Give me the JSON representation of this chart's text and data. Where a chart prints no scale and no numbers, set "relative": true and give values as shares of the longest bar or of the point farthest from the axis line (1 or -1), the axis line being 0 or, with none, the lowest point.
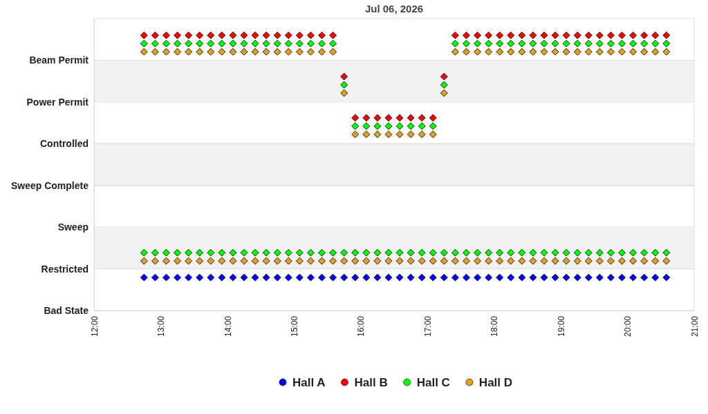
{
  "chart_data": {
    "type": "scatter",
    "title": "Jul 06, 2026",
    "relative": true,
    "x": [
      "2026-07-06T12:45",
      "2026-07-06T12:55",
      "2026-07-06T13:05",
      "2026-07-06T13:15",
      "2026-07-06T13:25",
      "2026-07-06T13:35",
      "2026-07-06T13:45",
      "2026-07-06T13:55",
      "2026-07-06T14:05",
      "2026-07-06T14:15",
      "2026-07-06T14:25",
      "2026-07-06T14:35",
      "2026-07-06T14:45",
      "2026-07-06T14:55",
      "2026-07-06T15:05",
      "2026-07-06T15:15",
      "2026-07-06T15:25",
      "2026-07-06T15:35",
      "2026-07-06T15:45",
      "2026-07-06T15:55",
      "2026-07-06T16:05",
      "2026-07-06T16:15",
      "2026-07-06T16:25",
      "2026-07-06T16:35",
      "2026-07-06T16:45",
      "2026-07-06T16:55",
      "2026-07-06T17:05",
      "2026-07-06T17:15",
      "2026-07-06T17:25",
      "2026-07-06T17:35",
      "2026-07-06T17:45",
      "2026-07-06T17:55",
      "2026-07-06T18:05",
      "2026-07-06T18:15",
      "2026-07-06T18:25",
      "2026-07-06T18:35",
      "2026-07-06T18:45",
      "2026-07-06T18:55",
      "2026-07-06T19:05",
      "2026-07-06T19:15",
      "2026-07-06T19:25",
      "2026-07-06T19:35",
      "2026-07-06T19:45",
      "2026-07-06T19:55",
      "2026-07-06T20:05",
      "2026-07-06T20:15",
      "2026-07-06T20:25",
      "2026-07-06T20:35"
    ],
    "y_categories": [
      "Beam Permit",
      "Power Permit",
      "Controlled",
      "Sweep Complete",
      "Sweep",
      "Restricted",
      "Bad State"
    ],
    "series": [
      {
        "name": "Hall A",
        "color": "#0000ff",
        "values": [
          0.12,
          0.12,
          0.12,
          0.12,
          0.12,
          0.12,
          0.12,
          0.12,
          0.12,
          0.12,
          0.12,
          0.12,
          0.12,
          0.12,
          0.12,
          0.12,
          0.12,
          0.12,
          0.12,
          0.12,
          0.12,
          0.12,
          0.12,
          0.12,
          0.12,
          0.12,
          0.12,
          0.12,
          0.12,
          0.12,
          0.12,
          0.12,
          0.12,
          0.12,
          0.12,
          0.12,
          0.12,
          0.12,
          0.12,
          0.12,
          0.12,
          0.12,
          0.12,
          0.12,
          0.12,
          0.12,
          0.12,
          0.12
        ]
      },
      {
        "name": "Hall B",
        "color": "#ff0000",
        "values": [
          1,
          1,
          1,
          1,
          1,
          1,
          1,
          1,
          1,
          1,
          1,
          1,
          1,
          1,
          1,
          1,
          1,
          1,
          0.85,
          0.7,
          0.7,
          0.7,
          0.7,
          0.7,
          0.7,
          0.7,
          0.7,
          0.85,
          1,
          1,
          1,
          1,
          1,
          1,
          1,
          1,
          1,
          1,
          1,
          1,
          1,
          1,
          1,
          1,
          1,
          1,
          1,
          1
        ]
      },
      {
        "name": "Hall C",
        "color": "#00ff00",
        "x": [
          "2026-07-06T12:45",
          "2026-07-06T12:55",
          "2026-07-06T13:05",
          "2026-07-06T13:15",
          "2026-07-06T13:25",
          "2026-07-06T13:35",
          "2026-07-06T13:45",
          "2026-07-06T13:55",
          "2026-07-06T14:05",
          "2026-07-06T14:15",
          "2026-07-06T14:25",
          "2026-07-06T14:35",
          "2026-07-06T14:45",
          "2026-07-06T14:55",
          "2026-07-06T15:05",
          "2026-07-06T15:15",
          "2026-07-06T15:25",
          "2026-07-06T15:35",
          "2026-07-06T15:45",
          "2026-07-06T15:55",
          "2026-07-06T16:05",
          "2026-07-06T16:15",
          "2026-07-06T16:25",
          "2026-07-06T16:35",
          "2026-07-06T16:45",
          "2026-07-06T16:55",
          "2026-07-06T17:05",
          "2026-07-06T17:15",
          "2026-07-06T17:25",
          "2026-07-06T17:35",
          "2026-07-06T17:45",
          "2026-07-06T17:55",
          "2026-07-06T18:05",
          "2026-07-06T18:15",
          "2026-07-06T18:25",
          "2026-07-06T18:35",
          "2026-07-06T18:45",
          "2026-07-06T18:55",
          "2026-07-06T19:05",
          "2026-07-06T19:15",
          "2026-07-06T19:25",
          "2026-07-06T19:35",
          "2026-07-06T19:45",
          "2026-07-06T19:55",
          "2026-07-06T20:05",
          "2026-07-06T20:15",
          "2026-07-06T20:25",
          "2026-07-06T20:35",
          "2026-07-06T12:45",
          "2026-07-06T12:55",
          "2026-07-06T13:05",
          "2026-07-06T13:15",
          "2026-07-06T13:25",
          "2026-07-06T13:35",
          "2026-07-06T13:45",
          "2026-07-06T13:55",
          "2026-07-06T14:05",
          "2026-07-06T14:15",
          "2026-07-06T14:25",
          "2026-07-06T14:35",
          "2026-07-06T14:45",
          "2026-07-06T14:55",
          "2026-07-06T15:05",
          "2026-07-06T15:15",
          "2026-07-06T15:25",
          "2026-07-06T15:35",
          "2026-07-06T15:45",
          "2026-07-06T15:55",
          "2026-07-06T16:05",
          "2026-07-06T16:15",
          "2026-07-06T16:25",
          "2026-07-06T16:35",
          "2026-07-06T16:45",
          "2026-07-06T16:55",
          "2026-07-06T17:05",
          "2026-07-06T17:15",
          "2026-07-06T17:25",
          "2026-07-06T17:35",
          "2026-07-06T17:45",
          "2026-07-06T17:55",
          "2026-07-06T18:05",
          "2026-07-06T18:15",
          "2026-07-06T18:25",
          "2026-07-06T18:35",
          "2026-07-06T18:45",
          "2026-07-06T18:55",
          "2026-07-06T19:05",
          "2026-07-06T19:15",
          "2026-07-06T19:25",
          "2026-07-06T19:35",
          "2026-07-06T19:45",
          "2026-07-06T19:55",
          "2026-07-06T20:05",
          "2026-07-06T20:15",
          "2026-07-06T20:25",
          "2026-07-06T20:35"
        ],
        "values": [
          0.97,
          0.97,
          0.97,
          0.97,
          0.97,
          0.97,
          0.97,
          0.97,
          0.97,
          0.97,
          0.97,
          0.97,
          0.97,
          0.97,
          0.97,
          0.97,
          0.97,
          0.97,
          0.82,
          0.67,
          0.67,
          0.67,
          0.67,
          0.67,
          0.67,
          0.67,
          0.67,
          0.82,
          0.97,
          0.97,
          0.97,
          0.97,
          0.97,
          0.97,
          0.97,
          0.97,
          0.97,
          0.97,
          0.97,
          0.97,
          0.97,
          0.97,
          0.97,
          0.97,
          0.97,
          0.97,
          0.97,
          0.97,
          0.21,
          0.21,
          0.21,
          0.21,
          0.21,
          0.21,
          0.21,
          0.21,
          0.21,
          0.21,
          0.21,
          0.21,
          0.21,
          0.21,
          0.21,
          0.21,
          0.21,
          0.21,
          0.21,
          0.21,
          0.21,
          0.21,
          0.21,
          0.21,
          0.21,
          0.21,
          0.21,
          0.21,
          0.21,
          0.21,
          0.21,
          0.21,
          0.21,
          0.21,
          0.21,
          0.21,
          0.21,
          0.21,
          0.21,
          0.21,
          0.21,
          0.21,
          0.21,
          0.21,
          0.21,
          0.21,
          0.21,
          0.21
        ]
      },
      {
        "name": "Hall D",
        "color": "#e0a020",
        "x": [
          "2026-07-06T12:45",
          "2026-07-06T12:55",
          "2026-07-06T13:05",
          "2026-07-06T13:15",
          "2026-07-06T13:25",
          "2026-07-06T13:35",
          "2026-07-06T13:45",
          "2026-07-06T13:55",
          "2026-07-06T14:05",
          "2026-07-06T14:15",
          "2026-07-06T14:25",
          "2026-07-06T14:35",
          "2026-07-06T14:45",
          "2026-07-06T14:55",
          "2026-07-06T15:05",
          "2026-07-06T15:15",
          "2026-07-06T15:25",
          "2026-07-06T15:35",
          "2026-07-06T15:45",
          "2026-07-06T15:55",
          "2026-07-06T16:05",
          "2026-07-06T16:15",
          "2026-07-06T16:25",
          "2026-07-06T16:35",
          "2026-07-06T16:45",
          "2026-07-06T16:55",
          "2026-07-06T17:05",
          "2026-07-06T17:15",
          "2026-07-06T17:25",
          "2026-07-06T17:35",
          "2026-07-06T17:45",
          "2026-07-06T17:55",
          "2026-07-06T18:05",
          "2026-07-06T18:15",
          "2026-07-06T18:25",
          "2026-07-06T18:35",
          "2026-07-06T18:45",
          "2026-07-06T18:55",
          "2026-07-06T19:05",
          "2026-07-06T19:15",
          "2026-07-06T19:25",
          "2026-07-06T19:35",
          "2026-07-06T19:45",
          "2026-07-06T19:55",
          "2026-07-06T20:05",
          "2026-07-06T20:15",
          "2026-07-06T20:25",
          "2026-07-06T20:35",
          "2026-07-06T12:45",
          "2026-07-06T12:55",
          "2026-07-06T13:05",
          "2026-07-06T13:15",
          "2026-07-06T13:25",
          "2026-07-06T13:35",
          "2026-07-06T13:45",
          "2026-07-06T13:55",
          "2026-07-06T14:05",
          "2026-07-06T14:15",
          "2026-07-06T14:25",
          "2026-07-06T14:35",
          "2026-07-06T14:45",
          "2026-07-06T14:55",
          "2026-07-06T15:05",
          "2026-07-06T15:15",
          "2026-07-06T15:25",
          "2026-07-06T15:35",
          "2026-07-06T15:45",
          "2026-07-06T15:55",
          "2026-07-06T16:05",
          "2026-07-06T16:15",
          "2026-07-06T16:25",
          "2026-07-06T16:35",
          "2026-07-06T16:45",
          "2026-07-06T16:55",
          "2026-07-06T17:05",
          "2026-07-06T17:15",
          "2026-07-06T17:25",
          "2026-07-06T17:35",
          "2026-07-06T17:45",
          "2026-07-06T17:55",
          "2026-07-06T18:05",
          "2026-07-06T18:15",
          "2026-07-06T18:25",
          "2026-07-06T18:35",
          "2026-07-06T18:45",
          "2026-07-06T18:55",
          "2026-07-06T19:05",
          "2026-07-06T19:15",
          "2026-07-06T19:25",
          "2026-07-06T19:35",
          "2026-07-06T19:45",
          "2026-07-06T19:55",
          "2026-07-06T20:05",
          "2026-07-06T20:15",
          "2026-07-06T20:25",
          "2026-07-06T20:35"
        ],
        "values": [
          0.94,
          0.94,
          0.94,
          0.94,
          0.94,
          0.94,
          0.94,
          0.94,
          0.94,
          0.94,
          0.94,
          0.94,
          0.94,
          0.94,
          0.94,
          0.94,
          0.94,
          0.94,
          0.79,
          0.64,
          0.64,
          0.64,
          0.64,
          0.64,
          0.64,
          0.64,
          0.64,
          0.79,
          0.94,
          0.94,
          0.94,
          0.94,
          0.94,
          0.94,
          0.94,
          0.94,
          0.94,
          0.94,
          0.94,
          0.94,
          0.94,
          0.94,
          0.94,
          0.94,
          0.94,
          0.94,
          0.94,
          0.94,
          0.18,
          0.18,
          0.18,
          0.18,
          0.18,
          0.18,
          0.18,
          0.18,
          0.18,
          0.18,
          0.18,
          0.18,
          0.18,
          0.18,
          0.18,
          0.18,
          0.18,
          0.18,
          0.18,
          0.18,
          0.18,
          0.18,
          0.18,
          0.18,
          0.18,
          0.18,
          0.18,
          0.18,
          0.18,
          0.18,
          0.18,
          0.18,
          0.18,
          0.18,
          0.18,
          0.18,
          0.18,
          0.18,
          0.18,
          0.18,
          0.18,
          0.18,
          0.18,
          0.18,
          0.18,
          0.18,
          0.18,
          0.18
        ]
      }
    ],
    "xlim": [
      "2026-07-06T12:00",
      "2026-07-06T21:00"
    ],
    "xticks": [
      {
        "value": "2026-07-06T12:00",
        "label": "12:00"
      },
      {
        "value": "2026-07-06T13:00",
        "label": "13:00"
      },
      {
        "value": "2026-07-06T14:00",
        "label": "14:00"
      },
      {
        "value": "2026-07-06T15:00",
        "label": "15:00"
      },
      {
        "value": "2026-07-06T16:00",
        "label": "16:00"
      },
      {
        "value": "2026-07-06T17:00",
        "label": "17:00"
      },
      {
        "value": "2026-07-06T18:00",
        "label": "18:00"
      },
      {
        "value": "2026-07-06T19:00",
        "label": "19:00"
      },
      {
        "value": "2026-07-06T20:00",
        "label": "20:00"
      },
      {
        "value": "2026-07-06T21:00",
        "label": "21:00"
      }
    ],
    "bands": [
      {
        "axis": "y",
        "from": 0.15,
        "to": 0.3,
        "color": "#f2f2f2"
      },
      {
        "axis": "y",
        "from": 0.45,
        "to": 0.61,
        "color": "#f2f2f2"
      },
      {
        "axis": "y",
        "from": 0.76,
        "to": 0.91,
        "color": "#f2f2f2"
      }
    ],
    "grid": "y",
    "legend": "bottom",
    "marker": "diamond"
  }
}
